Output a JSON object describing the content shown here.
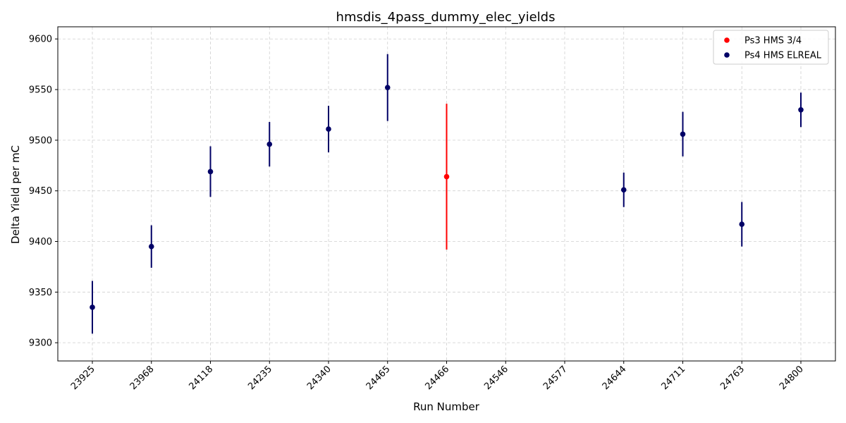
{
  "chart_data": {
    "type": "scatter",
    "title": "hmsdis_4pass_dummy_elec_yields",
    "xlabel": "Run Number",
    "ylabel": "Delta Yield per mC",
    "categories": [
      "23925",
      "23968",
      "24118",
      "24235",
      "24340",
      "24465",
      "24466",
      "24546",
      "24577",
      "24644",
      "24711",
      "24763",
      "24800"
    ],
    "ylim": [
      9282,
      9612
    ],
    "yticks": [
      9300,
      9350,
      9400,
      9450,
      9500,
      9550,
      9600
    ],
    "grid": true,
    "legend_position": "top-right",
    "series": [
      {
        "name": "Ps3 HMS 3/4",
        "color": "#ff0000",
        "points": [
          {
            "x": "24466",
            "y": 9464,
            "err": 72
          }
        ]
      },
      {
        "name": "Ps4 HMS ELREAL",
        "color": "#000066",
        "points": [
          {
            "x": "23925",
            "y": 9335,
            "err": 26
          },
          {
            "x": "23968",
            "y": 9395,
            "err": 21
          },
          {
            "x": "24118",
            "y": 9469,
            "err": 25
          },
          {
            "x": "24235",
            "y": 9496,
            "err": 22
          },
          {
            "x": "24340",
            "y": 9511,
            "err": 23
          },
          {
            "x": "24465",
            "y": 9552,
            "err": 33
          },
          {
            "x": "24644",
            "y": 9451,
            "err": 17
          },
          {
            "x": "24711",
            "y": 9506,
            "err": 22
          },
          {
            "x": "24763",
            "y": 9417,
            "err": 22
          },
          {
            "x": "24800",
            "y": 9530,
            "err": 17
          }
        ]
      }
    ]
  }
}
